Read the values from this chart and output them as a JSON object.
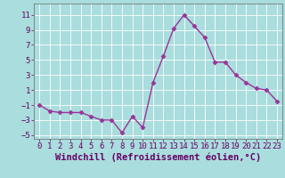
{
  "x": [
    0,
    1,
    2,
    3,
    4,
    5,
    6,
    7,
    8,
    9,
    10,
    11,
    12,
    13,
    14,
    15,
    16,
    17,
    18,
    19,
    20,
    21,
    22,
    23
  ],
  "y": [
    -1.0,
    -1.8,
    -2.0,
    -2.0,
    -2.0,
    -2.5,
    -3.0,
    -3.0,
    -4.7,
    -2.5,
    -4.0,
    2.0,
    5.5,
    9.2,
    11.0,
    9.5,
    8.0,
    4.7,
    4.7,
    3.0,
    2.0,
    1.2,
    1.0,
    -0.5
  ],
  "line_color": "#993399",
  "marker": "D",
  "marker_size": 2.5,
  "bg_color": "#aadddd",
  "grid_color": "#ffffff",
  "xlabel": "Windchill (Refroidissement éolien,°C)",
  "xlabel_fontsize": 7.5,
  "xlim": [
    -0.5,
    23.5
  ],
  "ylim": [
    -5.5,
    12.5
  ],
  "yticks": [
    -5,
    -3,
    -1,
    1,
    3,
    5,
    7,
    9,
    11
  ],
  "xticks": [
    0,
    1,
    2,
    3,
    4,
    5,
    6,
    7,
    8,
    9,
    10,
    11,
    12,
    13,
    14,
    15,
    16,
    17,
    18,
    19,
    20,
    21,
    22,
    23
  ],
  "tick_fontsize": 6.5,
  "line_width": 1.0,
  "spine_color": "#666666",
  "tick_color": "#660066",
  "label_color": "#660066"
}
